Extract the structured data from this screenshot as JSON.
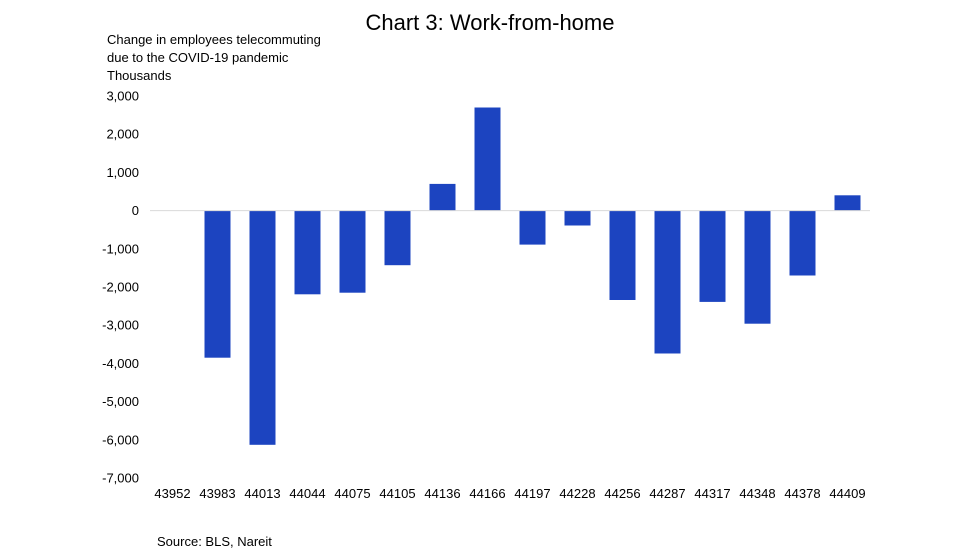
{
  "chart_data": {
    "type": "bar",
    "title": "Chart 3: Work-from-home",
    "ylabel_lines": [
      "Change in employees telecommuting",
      "due to the COVID-19 pandemic",
      "Thousands"
    ],
    "source": "Source: BLS, Nareit",
    "categories": [
      "43952",
      "43983",
      "44013",
      "44044",
      "44075",
      "44105",
      "44136",
      "44166",
      "44197",
      "44228",
      "44256",
      "44287",
      "44317",
      "44348",
      "44378",
      "44409"
    ],
    "values": [
      0,
      -3850,
      -6130,
      -2190,
      -2150,
      -1430,
      700,
      2700,
      -890,
      -390,
      -2340,
      -3740,
      -2390,
      -2960,
      -1700,
      400
    ],
    "ylim": [
      -7000,
      3000
    ],
    "yticks": [
      3000,
      2000,
      1000,
      0,
      -1000,
      -2000,
      -3000,
      -4000,
      -5000,
      -6000,
      -7000
    ],
    "ytick_labels": [
      "3,000",
      "2,000",
      "1,000",
      "0",
      "-1,000",
      "-2,000",
      "-3,000",
      "-4,000",
      "-5,000",
      "-6,000",
      "-7,000"
    ],
    "bar_color": "#1c44c0",
    "zero_line_color": "#d9d9d9",
    "grid": false,
    "legend": false
  }
}
